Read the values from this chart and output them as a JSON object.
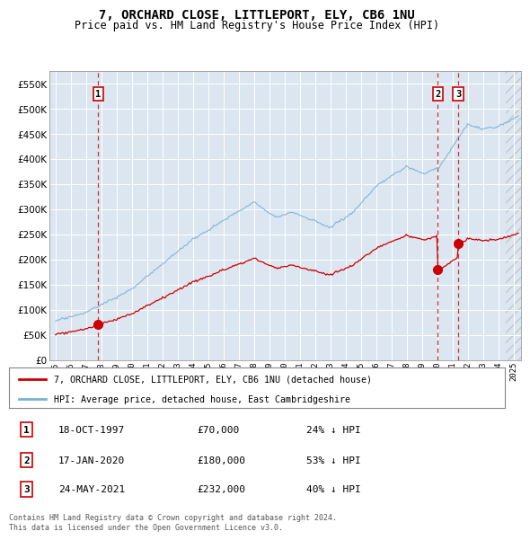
{
  "title": "7, ORCHARD CLOSE, LITTLEPORT, ELY, CB6 1NU",
  "subtitle": "Price paid vs. HM Land Registry's House Price Index (HPI)",
  "bg_color": "#dce6f1",
  "red_line_color": "#cc0000",
  "blue_line_color": "#7bafd4",
  "sales": [
    {
      "date": 1997.8,
      "price": 70000,
      "label": "1"
    },
    {
      "date": 2020.04,
      "price": 180000,
      "label": "2"
    },
    {
      "date": 2021.39,
      "price": 232000,
      "label": "3"
    }
  ],
  "legend_red": "7, ORCHARD CLOSE, LITTLEPORT, ELY, CB6 1NU (detached house)",
  "legend_blue": "HPI: Average price, detached house, East Cambridgeshire",
  "table": [
    {
      "num": "1",
      "date": "18-OCT-1997",
      "price": "£70,000",
      "pct": "24% ↓ HPI"
    },
    {
      "num": "2",
      "date": "17-JAN-2020",
      "price": "£180,000",
      "pct": "53% ↓ HPI"
    },
    {
      "num": "3",
      "date": "24-MAY-2021",
      "price": "£232,000",
      "pct": "40% ↓ HPI"
    }
  ],
  "footer": "Contains HM Land Registry data © Crown copyright and database right 2024.\nThis data is licensed under the Open Government Licence v3.0.",
  "ylim": [
    0,
    575000
  ],
  "yticks": [
    0,
    50000,
    100000,
    150000,
    200000,
    250000,
    300000,
    350000,
    400000,
    450000,
    500000,
    550000
  ],
  "xlim_start": 1994.6,
  "xlim_end": 2025.5
}
